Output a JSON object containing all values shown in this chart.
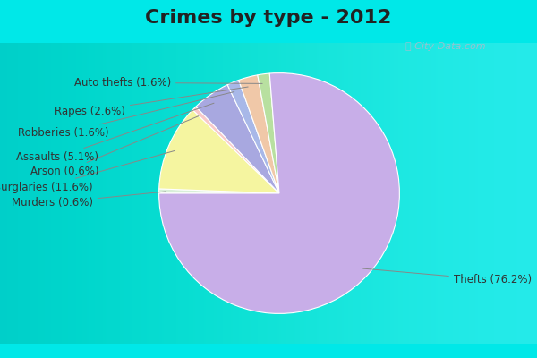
{
  "title": "Crimes by type - 2012",
  "ordered_labels": [
    "Murders",
    "Burglaries",
    "Arson",
    "Assaults",
    "Robberies",
    "Rapes",
    "Auto thefts",
    "Thefts"
  ],
  "ordered_values": [
    0.6,
    11.6,
    0.6,
    5.1,
    1.6,
    2.6,
    1.6,
    76.2
  ],
  "colors": {
    "Thefts": "#c8aee8",
    "Burglaries": "#f5f5a0",
    "Assaults": "#a8a8e0",
    "Rapes": "#f0c8a8",
    "Auto thefts": "#b8e0a0",
    "Robberies": "#a8b8e8",
    "Arson": "#f8c8c8",
    "Murders": "#d8eed8"
  },
  "bg_color": "#d8eed8",
  "cyan_color": "#00e8e8",
  "title_fontsize": 16,
  "label_fontsize": 8.5
}
